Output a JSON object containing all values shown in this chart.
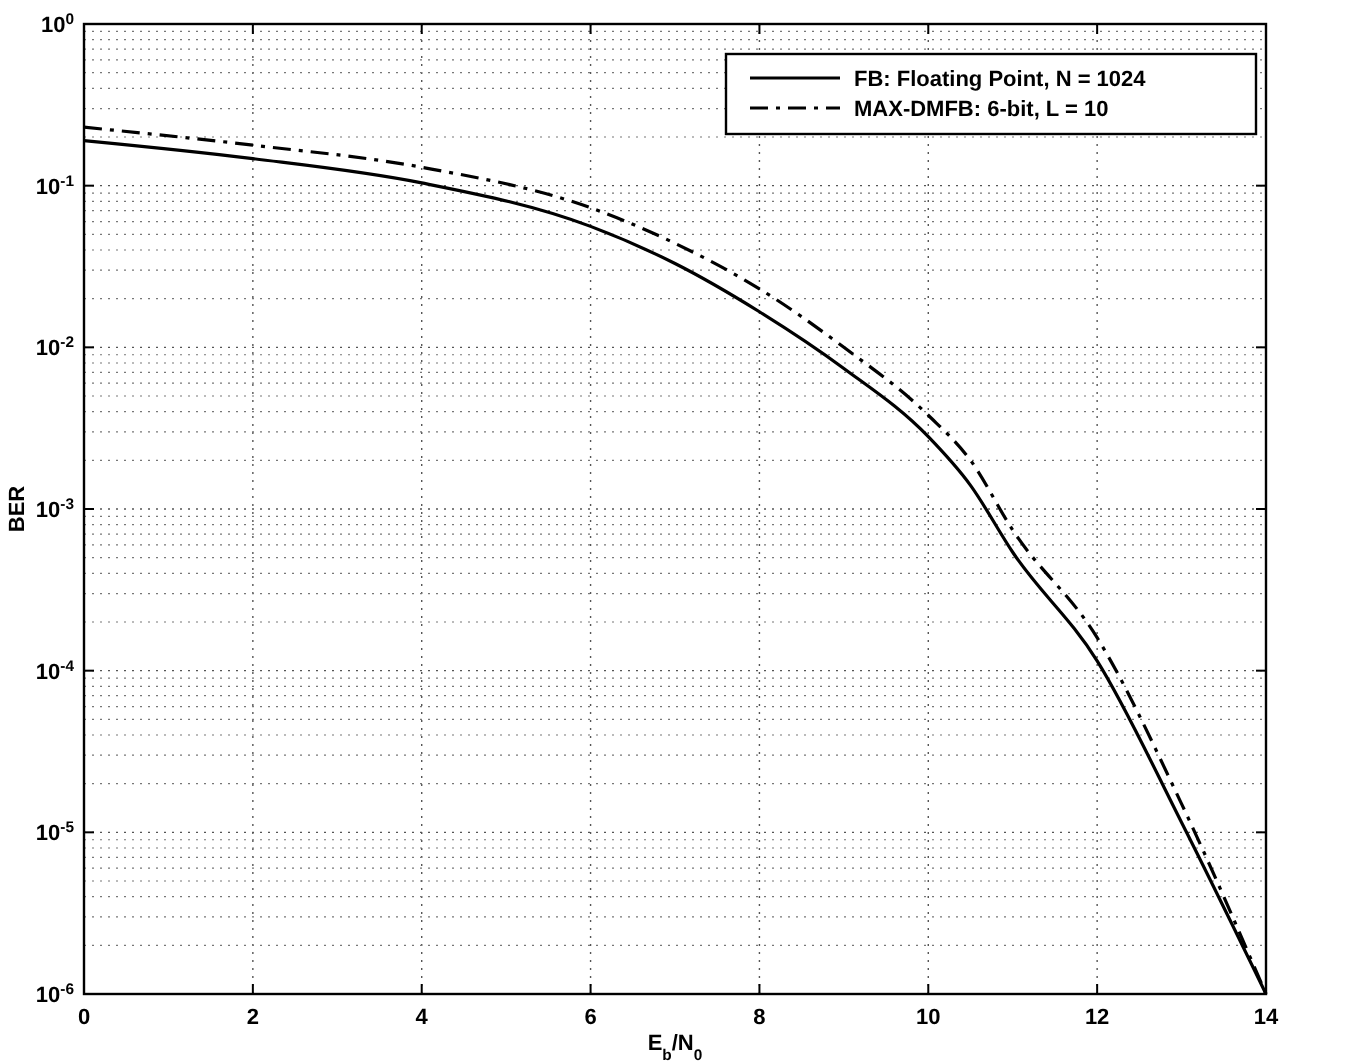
{
  "chart_data": {
    "type": "line",
    "xlabel": "E$_{b}$/N$_{0}$",
    "ylabel": "BER",
    "log": "y",
    "grid": true,
    "legend": "top right",
    "xlim": [
      0,
      14
    ],
    "xticks": [
      0,
      2,
      4,
      6,
      8,
      10,
      12,
      14
    ],
    "ylim": [
      1e-06,
      1
    ],
    "yticks": [
      {
        "value": 1e-06,
        "label": "10$^{-6}$"
      },
      {
        "value": 1e-05,
        "label": "10$^{-5}$"
      },
      {
        "value": 0.0001,
        "label": "10$^{-4}$"
      },
      {
        "value": 0.001,
        "label": "10$^{-3}$"
      },
      {
        "value": 0.01,
        "label": "10$^{-2}$"
      },
      {
        "value": 0.1,
        "label": "10$^{-1}$"
      },
      {
        "value": 1,
        "label": "10$^{0}$"
      }
    ],
    "x": [
      0,
      2,
      4,
      6,
      7,
      8,
      9,
      10,
      10.5,
      11,
      12,
      13,
      14
    ],
    "series": [
      {
        "name": "FB: Floating Point, N = 1024",
        "color": "#000000",
        "line_style": "solid",
        "values": [
          0.19,
          0.147,
          0.104,
          0.056,
          0.033,
          0.0166,
          0.0074,
          0.0028,
          0.0014,
          0.00054,
          0.000115,
          1.15e-05,
          1e-06
        ]
      },
      {
        "name": "MAX-DMFB: 6-bit, L = 10",
        "color": "#000000",
        "line_style": "dashed",
        "values": [
          0.23,
          0.178,
          0.13,
          0.073,
          0.044,
          0.023,
          0.01,
          0.0038,
          0.002,
          0.00074,
          0.00016,
          1.5e-05,
          1e-06
        ]
      }
    ]
  }
}
